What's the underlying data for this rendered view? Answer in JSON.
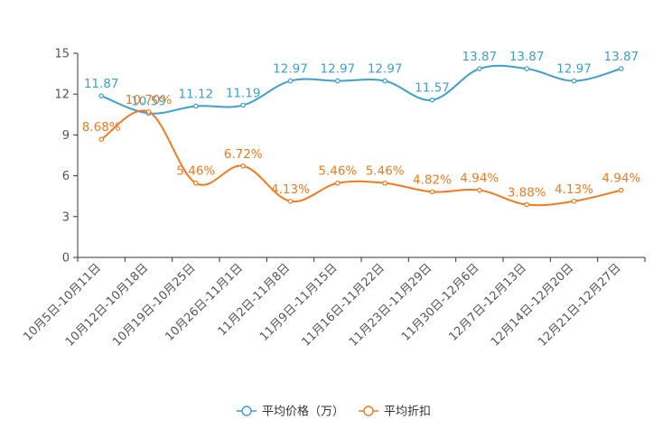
{
  "chart_data": {
    "type": "line",
    "title": "",
    "xlabel": "",
    "ylabel": "",
    "ylim": [
      0,
      15
    ],
    "yticks": [
      0,
      3,
      6,
      9,
      12,
      15
    ],
    "grid": false,
    "legend_position": "bottom-center",
    "categories": [
      "10月5日-10月11日",
      "10月12日-10月18日",
      "10月19日-10月25日",
      "10月26日-11月1日",
      "11月2日-11月8日",
      "11月9日-11月15日",
      "11月16日-11月22日",
      "11月23日-11月29日",
      "11月30日-12月6日",
      "12月7日-12月13日",
      "12月14日-12月20日",
      "12月21日-12月27日"
    ],
    "series": [
      {
        "name": "平均价格（万）",
        "color": "#3e9fcf",
        "values": [
          11.87,
          10.59,
          11.12,
          11.19,
          12.97,
          12.97,
          12.97,
          11.57,
          13.87,
          13.87,
          12.97,
          13.87
        ],
        "labels": [
          "11.87",
          "10.59",
          "11.12",
          "11.19",
          "12.97",
          "12.97",
          "12.97",
          "11.57",
          "13.87",
          "13.87",
          "12.97",
          "13.87"
        ]
      },
      {
        "name": "平均折扣",
        "color": "#f37a1f",
        "values": [
          8.68,
          10.7,
          5.46,
          6.72,
          4.13,
          5.46,
          5.46,
          4.82,
          4.94,
          3.88,
          4.13,
          4.94
        ],
        "labels": [
          "8.68%",
          "10.70%",
          "5.46%",
          "6.72%",
          "4.13%",
          "5.46%",
          "5.46%",
          "4.82%",
          "4.94%",
          "3.88%",
          "4.13%",
          "4.94%"
        ]
      }
    ]
  }
}
